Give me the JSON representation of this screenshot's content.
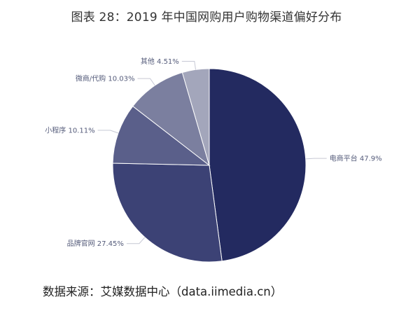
{
  "chart_data": {
    "type": "pie",
    "title": "图表 28：2019 年中国网购用户购物渠道偏好分布",
    "slices": [
      {
        "label": "电商平台",
        "value": 47.9,
        "display": "电商平台 47.9%",
        "color": "#232a60"
      },
      {
        "label": "品牌官网",
        "value": 27.45,
        "display": "品牌官网 27.45%",
        "color": "#3c4275"
      },
      {
        "label": "小程序",
        "value": 10.11,
        "display": "小程序 10.11%",
        "color": "#5a5f8a"
      },
      {
        "label": "微商/代购",
        "value": 10.03,
        "display": "微商/代购 10.03%",
        "color": "#7b7f9f"
      },
      {
        "label": "其他",
        "value": 4.51,
        "display": "其他 4.51%",
        "color": "#a3a6bb"
      }
    ],
    "start_direction": "12 o'clock",
    "rotation": "clockwise",
    "label_placement": "outside with leader lines",
    "leader_color": "#c6c8d4"
  },
  "source": "数据来源：艾媒数据中心（data.iimedia.cn）"
}
